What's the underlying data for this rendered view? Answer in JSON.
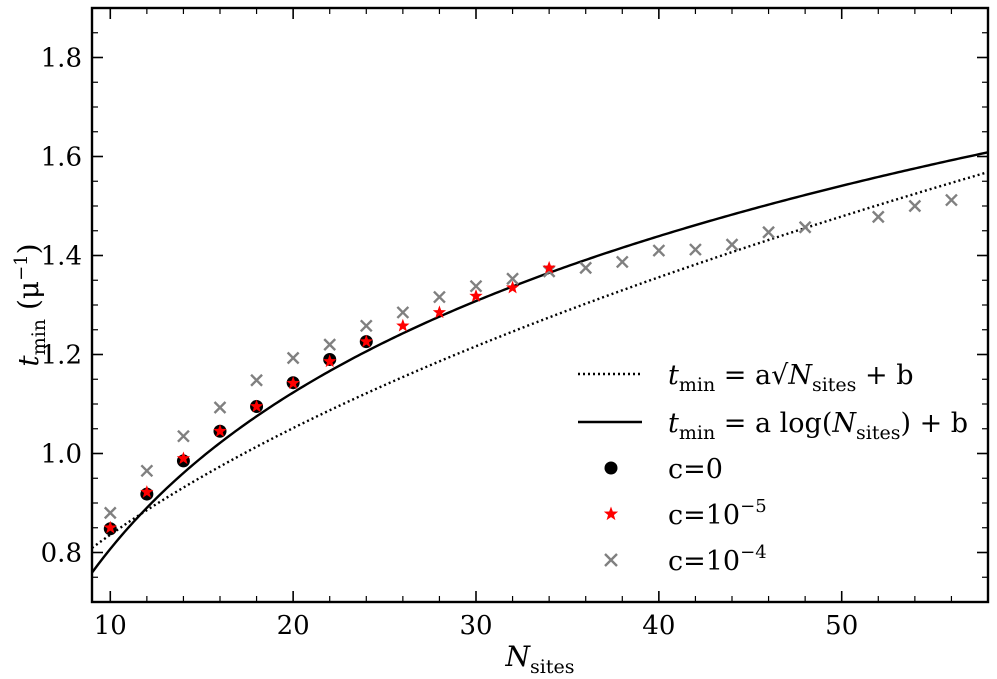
{
  "chart_data": {
    "type": "scatter",
    "title": "",
    "xlabel": {
      "main": "N",
      "sub": "sites"
    },
    "ylabel": {
      "main": "t",
      "sub": "min",
      "unit_open": " (μ",
      "unit_sup": "−1",
      "unit_close": ")"
    },
    "xlim": [
      9,
      58
    ],
    "ylim": [
      0.7,
      1.9
    ],
    "xticks": [
      10,
      20,
      30,
      40,
      50
    ],
    "yticks": [
      0.8,
      1.0,
      1.2,
      1.4,
      1.6,
      1.8
    ],
    "xtick_labels": [
      "10",
      "20",
      "30",
      "40",
      "50"
    ],
    "ytick_labels": [
      "0.8",
      "1.0",
      "1.2",
      "1.4",
      "1.6",
      "1.8"
    ],
    "fits": [
      {
        "name": "sqrt-fit",
        "model": "sqrt",
        "a": 0.1645,
        "b": 0.3157,
        "style": "dotted",
        "color": "#000000",
        "legend": {
          "t": "t",
          "tsub": "min",
          "eq": " = a",
          "root": "√",
          "N": "N",
          "Nsub": "sites",
          "tail": " + b"
        }
      },
      {
        "name": "log-fit",
        "model": "log",
        "a": 0.4558,
        "b": -0.2423,
        "style": "solid",
        "color": "#000000",
        "legend": {
          "t": "t",
          "tsub": "min",
          "eq": " = a log(",
          "N": "N",
          "Nsub": "sites",
          "tail": ") + b"
        }
      }
    ],
    "series": [
      {
        "name": "c=0",
        "marker": "circle",
        "color": "#000000",
        "legend": {
          "base": "c=0",
          "sup": ""
        },
        "x": [
          10,
          12,
          14,
          16,
          18,
          20,
          22,
          24
        ],
        "y": [
          0.848,
          0.918,
          0.985,
          1.045,
          1.095,
          1.143,
          1.19,
          1.226
        ]
      },
      {
        "name": "c=1e-5",
        "marker": "star",
        "color": "#ff0000",
        "legend": {
          "base": "c=10",
          "sup": "−5"
        },
        "x": [
          10,
          12,
          14,
          16,
          18,
          20,
          22,
          24,
          26,
          28,
          30,
          32,
          34
        ],
        "y": [
          0.85,
          0.922,
          0.99,
          1.045,
          1.095,
          1.142,
          1.186,
          1.226,
          1.258,
          1.285,
          1.318,
          1.335,
          1.375
        ]
      },
      {
        "name": "c=1e-4",
        "marker": "x",
        "color": "#808080",
        "legend": {
          "base": "c=10",
          "sup": "−4"
        },
        "x": [
          10,
          12,
          14,
          16,
          18,
          20,
          22,
          24,
          26,
          28,
          30,
          32,
          34,
          36,
          38,
          40,
          42,
          44,
          46,
          48,
          52,
          54,
          56
        ],
        "y": [
          0.88,
          0.965,
          1.035,
          1.093,
          1.148,
          1.193,
          1.22,
          1.258,
          1.285,
          1.316,
          1.338,
          1.353,
          1.368,
          1.375,
          1.387,
          1.41,
          1.412,
          1.422,
          1.447,
          1.457,
          1.478,
          1.5,
          1.512
        ]
      }
    ],
    "legend_position": "lower-right"
  }
}
